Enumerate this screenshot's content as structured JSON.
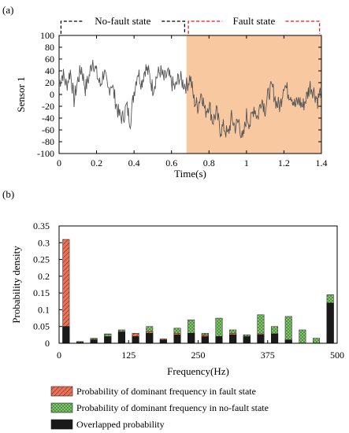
{
  "chart_data": [
    {
      "type": "line",
      "panel_label": "(a)",
      "xlabel": "Time(s)",
      "ylabel": "Sensor 1",
      "xlim": [
        0,
        1.4
      ],
      "ylim": [
        -100,
        100
      ],
      "xticks": [
        0,
        0.2,
        0.4,
        0.6,
        0.8,
        1,
        1.2,
        1.4
      ],
      "yticks": [
        -100,
        -80,
        -60,
        -40,
        -20,
        0,
        20,
        40,
        60,
        80,
        100
      ],
      "xtick_labels": [
        "0",
        "0.2",
        "0.4",
        "0.6",
        "0.8",
        "1",
        "1.2",
        "1.4"
      ],
      "ytick_labels": [
        "-100",
        "-80",
        "-60",
        "-40",
        "-20",
        "0",
        "20",
        "40",
        "60",
        "80",
        "100"
      ],
      "regions": [
        {
          "label": "No-fault state",
          "x": [
            0.01,
            0.67
          ],
          "bracket_color": "#000000"
        },
        {
          "label": "Fault state",
          "x": [
            0.69,
            1.39
          ],
          "bracket_color": "#e0141e",
          "fill_color": "#f8c9a0"
        }
      ],
      "fault_shade_x": [
        0.68,
        1.4
      ],
      "signal": {
        "color": "#555555",
        "x": [
          0.0,
          0.02,
          0.04,
          0.06,
          0.08,
          0.1,
          0.12,
          0.14,
          0.16,
          0.18,
          0.2,
          0.22,
          0.24,
          0.26,
          0.28,
          0.3,
          0.32,
          0.34,
          0.36,
          0.38,
          0.4,
          0.42,
          0.44,
          0.46,
          0.48,
          0.5,
          0.52,
          0.54,
          0.56,
          0.58,
          0.6,
          0.62,
          0.64,
          0.66,
          0.68,
          0.7,
          0.72,
          0.74,
          0.76,
          0.78,
          0.8,
          0.82,
          0.84,
          0.86,
          0.88,
          0.9,
          0.92,
          0.94,
          0.96,
          0.98,
          1.0,
          1.02,
          1.04,
          1.06,
          1.08,
          1.1,
          1.12,
          1.14,
          1.16,
          1.18,
          1.2,
          1.22,
          1.24,
          1.26,
          1.28,
          1.3,
          1.32,
          1.34,
          1.36,
          1.38,
          1.4
        ],
        "y": [
          20,
          35,
          15,
          40,
          -10,
          25,
          45,
          10,
          30,
          60,
          35,
          15,
          40,
          5,
          20,
          -10,
          -35,
          -40,
          -20,
          -45,
          5,
          40,
          20,
          45,
          35,
          10,
          30,
          40,
          25,
          35,
          20,
          10,
          30,
          20,
          15,
          30,
          -10,
          -20,
          5,
          -30,
          -15,
          -45,
          -30,
          -60,
          -55,
          -70,
          -40,
          -55,
          -45,
          -80,
          -35,
          -50,
          -20,
          -40,
          -5,
          -25,
          5,
          10,
          -15,
          -20,
          20,
          5,
          0,
          -20,
          -10,
          -20,
          -5,
          15,
          5,
          -10,
          10
        ]
      }
    },
    {
      "type": "bar",
      "panel_label": "(b)",
      "xlabel": "Frequency(Hz)",
      "ylabel": "Probability density",
      "xlim": [
        0,
        500
      ],
      "ylim": [
        0,
        0.35
      ],
      "xticks": [
        0,
        125,
        250,
        375,
        500
      ],
      "yticks": [
        0,
        0.05,
        0.1,
        0.15,
        0.2,
        0.25,
        0.3,
        0.35
      ],
      "xtick_labels": [
        "0",
        "125",
        "250",
        "375",
        "500"
      ],
      "ytick_labels": [
        "0",
        "0.05",
        "0.1",
        "0.15",
        "0.2",
        "0.25",
        "0.3",
        "0.35"
      ],
      "bin_width": 12,
      "centers": [
        12.5,
        37.5,
        62.5,
        87.5,
        112.5,
        137.5,
        162.5,
        187.5,
        212.5,
        237.5,
        262.5,
        287.5,
        312.5,
        337.5,
        362.5,
        387.5,
        412.5,
        437.5,
        462.5,
        487.5
      ],
      "series": [
        {
          "name": "Probability of dominant frequency in fault state",
          "color": "#e8735a",
          "values": [
            0.31,
            0.005,
            0.012,
            0.028,
            0.035,
            0.03,
            0.035,
            0.013,
            0.03,
            0.03,
            0.025,
            0.02,
            0.03,
            0.025,
            0.028,
            0.028,
            0.01,
            0.0,
            0.0,
            0.12
          ]
        },
        {
          "name": "Probability of dominant frequency in no-fault state",
          "color": "#8fd07a",
          "values": [
            0.05,
            0.005,
            0.015,
            0.027,
            0.04,
            0.02,
            0.05,
            0.01,
            0.045,
            0.07,
            0.03,
            0.075,
            0.04,
            0.025,
            0.085,
            0.05,
            0.08,
            0.04,
            0.015,
            0.145
          ]
        },
        {
          "name": "Overlapped probability",
          "color": "#1a1a1a",
          "values": [
            0.05,
            0.003,
            0.01,
            0.02,
            0.033,
            0.02,
            0.03,
            0.01,
            0.025,
            0.03,
            0.02,
            0.02,
            0.025,
            0.02,
            0.025,
            0.028,
            0.01,
            0.0,
            0.0,
            0.12
          ]
        }
      ]
    }
  ]
}
